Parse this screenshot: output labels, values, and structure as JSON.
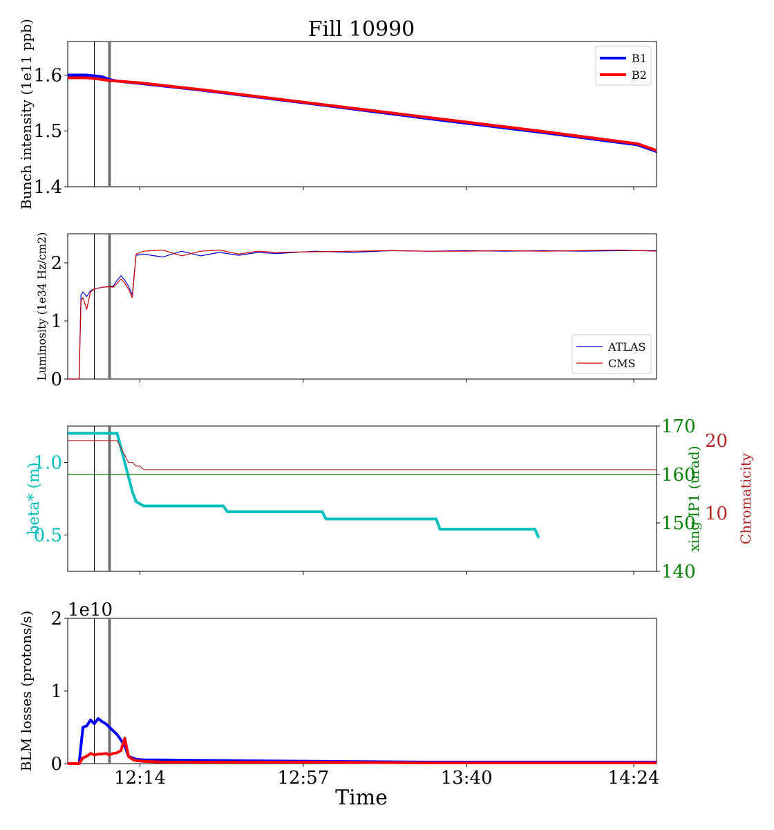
{
  "figure": {
    "title": "Fill 10990",
    "xlabel": "Time",
    "x_tick_labels": [
      "12:14",
      "12:57",
      "13:40",
      "14:24"
    ]
  },
  "colors": {
    "B1": "#0000ff",
    "B2": "#ff0000",
    "ATLAS": "#0000cc",
    "CMS": "#cc0000",
    "beta": "#00bfbf",
    "xing": "#008000",
    "chroma": "#b22222",
    "marker_thin": "#000000",
    "marker_thick": "#707070"
  },
  "chart_data": [
    {
      "id": "intensity",
      "type": "line",
      "ylabel": "Bunch intensity (1e11 ppb)",
      "ylim": [
        1.4,
        1.66
      ],
      "yticks": [
        1.4,
        1.5,
        1.6
      ],
      "legend_position": "top-right",
      "series": [
        {
          "name": "B1",
          "x": [
            "11:55",
            "12:00",
            "12:04",
            "12:06",
            "12:08",
            "12:14",
            "12:30",
            "13:00",
            "13:30",
            "14:00",
            "14:25",
            "14:30"
          ],
          "values": [
            1.6,
            1.6,
            1.597,
            1.592,
            1.589,
            1.585,
            1.573,
            1.548,
            1.522,
            1.497,
            1.475,
            1.463
          ]
        },
        {
          "name": "B2",
          "x": [
            "11:55",
            "12:00",
            "12:04",
            "12:06",
            "12:08",
            "12:14",
            "12:30",
            "13:00",
            "13:30",
            "14:00",
            "14:25",
            "14:30"
          ],
          "values": [
            1.595,
            1.595,
            1.592,
            1.59,
            1.589,
            1.586,
            1.574,
            1.549,
            1.524,
            1.499,
            1.477,
            1.465
          ]
        }
      ]
    },
    {
      "id": "luminosity",
      "type": "line",
      "ylabel": "Luminosity (1e34 Hz/cm2)",
      "ylim": [
        0,
        2.5
      ],
      "yticks": [
        0,
        1,
        2
      ],
      "legend_position": "bottom-right",
      "series": [
        {
          "name": "ATLAS",
          "x": [
            "11:55",
            "11:58",
            "11:58.5",
            "11:59",
            "12:00",
            "12:01",
            "12:02",
            "12:04",
            "12:06",
            "12:07",
            "12:08",
            "12:09",
            "12:10",
            "12:11",
            "12:12",
            "12:13",
            "12:15",
            "12:20",
            "12:25",
            "12:30",
            "12:35",
            "12:40",
            "12:45",
            "12:50",
            "13:00",
            "13:10",
            "13:20",
            "13:30",
            "13:40",
            "13:50",
            "14:00",
            "14:10",
            "14:20",
            "14:30"
          ],
          "values": [
            0,
            0,
            1.45,
            1.5,
            1.42,
            1.52,
            1.55,
            1.58,
            1.59,
            1.6,
            1.7,
            1.78,
            1.7,
            1.6,
            1.45,
            2.13,
            2.15,
            2.1,
            2.2,
            2.12,
            2.18,
            2.13,
            2.18,
            2.16,
            2.2,
            2.18,
            2.21,
            2.2,
            2.21,
            2.2,
            2.21,
            2.2,
            2.21,
            2.21
          ]
        },
        {
          "name": "CMS",
          "x": [
            "11:55",
            "11:58",
            "11:58.5",
            "11:59",
            "12:00",
            "12:01",
            "12:02",
            "12:04",
            "12:06",
            "12:07",
            "12:08",
            "12:09",
            "12:10",
            "12:11",
            "12:12",
            "12:13",
            "12:15",
            "12:20",
            "12:25",
            "12:30",
            "12:35",
            "12:40",
            "12:45",
            "12:50",
            "13:00",
            "13:10",
            "13:20",
            "13:30",
            "13:40",
            "13:50",
            "14:00",
            "14:10",
            "14:20",
            "14:30"
          ],
          "values": [
            0,
            0,
            1.35,
            1.4,
            1.2,
            1.5,
            1.55,
            1.58,
            1.59,
            1.58,
            1.65,
            1.72,
            1.65,
            1.55,
            1.4,
            2.15,
            2.2,
            2.22,
            2.12,
            2.2,
            2.22,
            2.15,
            2.2,
            2.18,
            2.19,
            2.2,
            2.21,
            2.2,
            2.2,
            2.21,
            2.2,
            2.21,
            2.22,
            2.2
          ]
        }
      ]
    },
    {
      "id": "optics",
      "type": "line",
      "ylabel_left": "beta* (m)",
      "ylabel_right1": "xing IP1 (urad)",
      "ylabel_right2": "Chromaticity",
      "ylim_left": [
        0.25,
        1.25
      ],
      "yticks_left": [
        0.5,
        1.0
      ],
      "ylim_right1": [
        140,
        170
      ],
      "yticks_right1": [
        140,
        150,
        160,
        170
      ],
      "ylim_right2": [
        2,
        22
      ],
      "yticks_right2": [
        10,
        20
      ],
      "series": [
        {
          "name": "beta*",
          "axis": "left",
          "x": [
            "11:55",
            "12:08",
            "12:10",
            "12:12",
            "12:13",
            "12:15",
            "12:36",
            "12:37",
            "13:02",
            "13:03",
            "13:32",
            "13:33",
            "13:58",
            "13:59"
          ],
          "values": [
            1.2,
            1.2,
            1.0,
            0.8,
            0.73,
            0.7,
            0.7,
            0.66,
            0.66,
            0.61,
            0.61,
            0.54,
            0.54,
            0.48
          ]
        },
        {
          "name": "xing IP1",
          "axis": "right1",
          "x": [
            "11:55",
            "14:30"
          ],
          "values": [
            160,
            160
          ]
        },
        {
          "name": "Chromaticity",
          "axis": "right2",
          "x": [
            "11:55",
            "12:08",
            "12:11",
            "12:12",
            "12:13",
            "12:14",
            "12:15",
            "12:16",
            "14:30"
          ],
          "values": [
            20,
            20,
            17,
            17,
            16.5,
            16.5,
            16,
            16,
            16
          ]
        }
      ]
    },
    {
      "id": "blm",
      "type": "line",
      "ylabel": "BLM losses (protons/s)",
      "ylim": [
        0,
        2
      ],
      "yticks": [
        0,
        1,
        2
      ],
      "offset_text": "1e10",
      "series": [
        {
          "name": "B1",
          "x": [
            "11:55",
            "11:58",
            "11:59",
            "12:00",
            "12:01",
            "12:02",
            "12:03",
            "12:04",
            "12:05",
            "12:06",
            "12:07",
            "12:08",
            "12:10",
            "12:11",
            "12:13",
            "12:15",
            "12:20",
            "12:40",
            "13:00",
            "13:30",
            "14:00",
            "14:30"
          ],
          "values": [
            0,
            0,
            0.5,
            0.52,
            0.6,
            0.55,
            0.62,
            0.58,
            0.55,
            0.5,
            0.45,
            0.4,
            0.25,
            0.1,
            0.06,
            0.05,
            0.05,
            0.04,
            0.03,
            0.02,
            0.02,
            0.02
          ]
        },
        {
          "name": "B2",
          "x": [
            "11:55",
            "11:58",
            "11:59",
            "12:00",
            "12:01",
            "12:02",
            "12:03",
            "12:04",
            "12:05",
            "12:06",
            "12:07",
            "12:08",
            "12:09",
            "12:10",
            "12:11",
            "12:12",
            "12:13",
            "12:15",
            "12:20",
            "12:40",
            "13:00",
            "13:30",
            "14:00",
            "14:30"
          ],
          "values": [
            0,
            0,
            0.08,
            0.1,
            0.14,
            0.12,
            0.13,
            0.13,
            0.14,
            0.12,
            0.14,
            0.15,
            0.18,
            0.35,
            0.1,
            0.06,
            0.04,
            0.03,
            0.02,
            0.02,
            0.02,
            0.01,
            0.01,
            0.01
          ]
        }
      ]
    }
  ],
  "markers": [
    {
      "time": "12:02",
      "style": "thin"
    },
    {
      "time": "12:06",
      "style": "thick"
    }
  ]
}
